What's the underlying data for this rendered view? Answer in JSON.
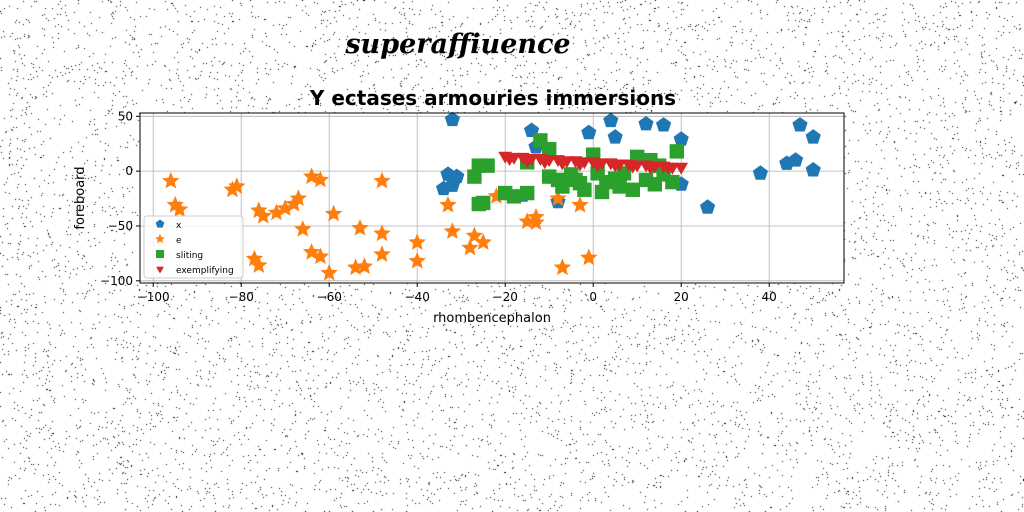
{
  "figure": {
    "suptitle": "superaffiuence",
    "background": "#ffffff"
  },
  "chart_data": {
    "type": "scatter",
    "title": "Y ectases armouries immersions",
    "xlabel": "rhombencephalon",
    "ylabel": "foreboard",
    "xlim": [
      -103,
      57
    ],
    "ylim": [
      -102,
      53
    ],
    "xticks": [
      -100,
      -80,
      -60,
      -40,
      -20,
      0,
      20,
      40
    ],
    "yticks": [
      50,
      0,
      -50,
      -100
    ],
    "grid": true,
    "legend_position": "lower-left",
    "series": [
      {
        "name": "x",
        "marker": "pentagon",
        "color": "#1f77b4",
        "points": [
          [
            -32,
            47
          ],
          [
            -14,
            37
          ],
          [
            -1,
            35
          ],
          [
            4,
            46
          ],
          [
            5,
            31
          ],
          [
            12,
            43
          ],
          [
            16,
            42
          ],
          [
            20,
            29
          ],
          [
            47,
            42
          ],
          [
            50,
            31
          ],
          [
            50,
            1
          ],
          [
            46,
            10
          ],
          [
            44,
            7
          ],
          [
            38,
            -2
          ],
          [
            26,
            -33
          ],
          [
            20,
            -12
          ],
          [
            -34,
            -16
          ],
          [
            -33,
            -3
          ],
          [
            -31,
            -5
          ],
          [
            -32,
            -13
          ],
          [
            -16,
            -22
          ],
          [
            -8,
            -28
          ],
          [
            -13,
            22
          ]
        ]
      },
      {
        "name": "e",
        "marker": "star",
        "color": "#ff7f0e",
        "points": [
          [
            -96,
            -9
          ],
          [
            -95,
            -31
          ],
          [
            -94,
            -35
          ],
          [
            -82,
            -17
          ],
          [
            -81,
            -14
          ],
          [
            -76,
            -36
          ],
          [
            -75,
            -41
          ],
          [
            -77,
            -80
          ],
          [
            -76,
            -86
          ],
          [
            -72,
            -38
          ],
          [
            -70,
            -34
          ],
          [
            -68,
            -30
          ],
          [
            -67,
            -25
          ],
          [
            -66,
            -53
          ],
          [
            -64,
            -5
          ],
          [
            -62,
            -8
          ],
          [
            -64,
            -74
          ],
          [
            -62,
            -78
          ],
          [
            -60,
            -93
          ],
          [
            -59,
            -39
          ],
          [
            -53,
            -52
          ],
          [
            -54,
            -88
          ],
          [
            -52,
            -87
          ],
          [
            -48,
            -57
          ],
          [
            -48,
            -76
          ],
          [
            -48,
            -9
          ],
          [
            -40,
            -65
          ],
          [
            -40,
            -82
          ],
          [
            -33,
            -31
          ],
          [
            -32,
            -55
          ],
          [
            -28,
            -70
          ],
          [
            -27,
            -59
          ],
          [
            -25,
            -65
          ],
          [
            -22,
            -23
          ],
          [
            -15,
            -46
          ],
          [
            -13,
            -42
          ],
          [
            -13,
            -47
          ],
          [
            -8,
            -25
          ],
          [
            -7,
            -88
          ],
          [
            -3,
            -31
          ],
          [
            -1,
            -79
          ]
        ]
      },
      {
        "name": "sliting",
        "marker": "square",
        "color": "#2ca02c",
        "points": [
          [
            -26,
            5
          ],
          [
            -24,
            5
          ],
          [
            -26,
            -30
          ],
          [
            -25,
            -29
          ],
          [
            -27,
            -5
          ],
          [
            -20,
            -20
          ],
          [
            -18,
            -23
          ],
          [
            -15,
            -20
          ],
          [
            -12,
            28
          ],
          [
            -10,
            20
          ],
          [
            -8,
            -8
          ],
          [
            -7,
            -14
          ],
          [
            -5,
            -3
          ],
          [
            -4,
            -8
          ],
          [
            -3,
            -11
          ],
          [
            -2,
            -17
          ],
          [
            0,
            15
          ],
          [
            1,
            -2
          ],
          [
            2,
            -19
          ],
          [
            3,
            -10
          ],
          [
            5,
            -7
          ],
          [
            6,
            -14
          ],
          [
            7,
            -2
          ],
          [
            9,
            -17
          ],
          [
            10,
            13
          ],
          [
            12,
            -8
          ],
          [
            13,
            10
          ],
          [
            14,
            -12
          ],
          [
            15,
            5
          ],
          [
            16,
            -3
          ],
          [
            18,
            -10
          ],
          [
            19,
            18
          ],
          [
            -15,
            8
          ],
          [
            -10,
            -5
          ]
        ]
      },
      {
        "name": "exemplifying",
        "marker": "triangle-down",
        "color": "#d62728",
        "points": [
          [
            -20,
            14
          ],
          [
            -18,
            13
          ],
          [
            -16,
            13
          ],
          [
            -14,
            12
          ],
          [
            -12,
            12
          ],
          [
            -10,
            11
          ],
          [
            -8,
            11
          ],
          [
            -6,
            10
          ],
          [
            -4,
            10
          ],
          [
            -2,
            9
          ],
          [
            0,
            9
          ],
          [
            2,
            8
          ],
          [
            4,
            8
          ],
          [
            6,
            7
          ],
          [
            8,
            7
          ],
          [
            10,
            6
          ],
          [
            12,
            6
          ],
          [
            14,
            5
          ],
          [
            16,
            5
          ],
          [
            18,
            4
          ],
          [
            20,
            4
          ],
          [
            -19,
            12
          ],
          [
            -15,
            10
          ],
          [
            -11,
            9
          ],
          [
            -7,
            8
          ],
          [
            -3,
            7
          ],
          [
            1,
            6
          ],
          [
            5,
            6
          ],
          [
            9,
            5
          ],
          [
            13,
            4
          ],
          [
            17,
            4
          ]
        ]
      }
    ]
  }
}
